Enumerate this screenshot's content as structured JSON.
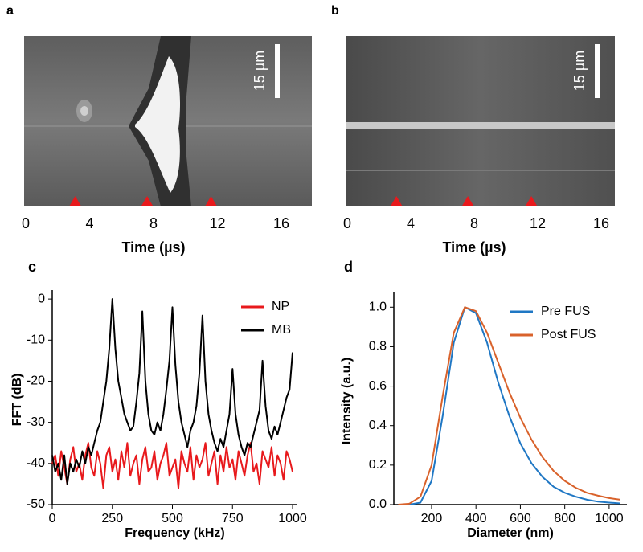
{
  "chart_data": [
    {
      "type": "streak",
      "label": "a",
      "xlabel": "Time (µs)",
      "xlim": [
        0,
        16
      ],
      "xticks": [
        0,
        4,
        8,
        12,
        16
      ],
      "scale_bar": "15 µm",
      "markers": [
        3.1,
        7.6,
        11.6
      ],
      "marker_color": "#e8191c"
    },
    {
      "type": "streak",
      "label": "b",
      "xlabel": "Time (µs)",
      "xlim": [
        0,
        16
      ],
      "xticks": [
        0,
        4,
        8,
        12,
        16
      ],
      "scale_bar": "15 µm",
      "markers": [
        3.1,
        7.6,
        11.6
      ],
      "marker_color": "#e8191c"
    },
    {
      "type": "line",
      "label": "c",
      "xlabel": "Frequency (kHz)",
      "ylabel": "FFT (dB)",
      "xlim": [
        0,
        1020
      ],
      "ylim": [
        -50,
        1
      ],
      "xticks": [
        0,
        250,
        500,
        750,
        1000
      ],
      "yticks": [
        0,
        -10,
        -20,
        -30,
        -40,
        -50
      ],
      "legend": "upper right",
      "x": [
        0,
        12.5,
        25,
        37.5,
        50,
        62.5,
        75,
        87.5,
        100,
        112.5,
        125,
        137.5,
        150,
        162.5,
        175,
        187.5,
        200,
        212.5,
        225,
        237.5,
        250,
        262.5,
        275,
        287.5,
        300,
        312.5,
        325,
        337.5,
        350,
        362.5,
        375,
        387.5,
        400,
        412.5,
        425,
        437.5,
        450,
        462.5,
        475,
        487.5,
        500,
        512.5,
        525,
        537.5,
        550,
        562.5,
        575,
        587.5,
        600,
        612.5,
        625,
        637.5,
        650,
        662.5,
        675,
        687.5,
        700,
        712.5,
        725,
        737.5,
        750,
        762.5,
        775,
        787.5,
        800,
        812.5,
        825,
        837.5,
        850,
        862.5,
        875,
        887.5,
        900,
        912.5,
        925,
        937.5,
        950,
        962.5,
        975,
        987.5,
        1000
      ],
      "series": [
        {
          "name": "NP",
          "color": "#e8191c",
          "values": [
            -40,
            -38,
            -43,
            -37,
            -41,
            -45,
            -39,
            -36,
            -42,
            -40,
            -44,
            -38,
            -35,
            -41,
            -43,
            -37,
            -40,
            -46,
            -38,
            -36,
            -42,
            -39,
            -44,
            -37,
            -41,
            -35,
            -43,
            -40,
            -38,
            -45,
            -39,
            -36,
            -42,
            -41,
            -37,
            -44,
            -40,
            -38,
            -35,
            -43,
            -41,
            -39,
            -46,
            -37,
            -40,
            -42,
            -36,
            -44,
            -38,
            -41,
            -39,
            -35,
            -43,
            -40,
            -37,
            -45,
            -38,
            -42,
            -36,
            -41,
            -39,
            -44,
            -37,
            -40,
            -43,
            -38,
            -35,
            -42,
            -40,
            -45,
            -37,
            -39,
            -41,
            -36,
            -43,
            -38,
            -40,
            -44,
            -37,
            -39,
            -42
          ]
        },
        {
          "name": "MB",
          "color": "#000000",
          "values": [
            -38,
            -42,
            -40,
            -44,
            -38,
            -45,
            -40,
            -42,
            -39,
            -41,
            -37,
            -40,
            -36,
            -38,
            -35,
            -32,
            -30,
            -25,
            -20,
            -12,
            0,
            -12,
            -20,
            -24,
            -28,
            -30,
            -32,
            -31,
            -25,
            -18,
            -3,
            -20,
            -28,
            -32,
            -33,
            -30,
            -32,
            -28,
            -22,
            -15,
            -2,
            -16,
            -25,
            -30,
            -33,
            -36,
            -32,
            -30,
            -26,
            -18,
            -4,
            -20,
            -28,
            -32,
            -35,
            -37,
            -34,
            -36,
            -32,
            -28,
            -17,
            -28,
            -33,
            -36,
            -38,
            -35,
            -36,
            -33,
            -30,
            -27,
            -15,
            -26,
            -32,
            -34,
            -31,
            -33,
            -30,
            -27,
            -24,
            -22,
            -13
          ]
        }
      ]
    },
    {
      "type": "line",
      "label": "d",
      "xlabel": "Diameter (nm)",
      "ylabel": "Intensity (a.u.)",
      "xlim": [
        30,
        1080
      ],
      "ylim": [
        0,
        1.05
      ],
      "xticks": [
        200,
        400,
        600,
        800,
        1000
      ],
      "yticks": [
        {
          "value": 0,
          "label": "0.0"
        },
        0.2,
        0.4,
        0.6,
        0.8,
        {
          "value": 1,
          "label": "1.0"
        }
      ],
      "legend": "upper right",
      "x": [
        50,
        100,
        150,
        200,
        250,
        300,
        350,
        400,
        450,
        500,
        550,
        600,
        650,
        700,
        750,
        800,
        850,
        900,
        950,
        1000,
        1050
      ],
      "series": [
        {
          "name": "Pre FUS",
          "color": "#1f77c4",
          "values": [
            0,
            0,
            0.01,
            0.12,
            0.45,
            0.82,
            1.0,
            0.97,
            0.82,
            0.62,
            0.45,
            0.31,
            0.21,
            0.14,
            0.09,
            0.06,
            0.04,
            0.025,
            0.015,
            0.01,
            0.006
          ]
        },
        {
          "name": "Post FUS",
          "color": "#d9622b",
          "values": [
            0,
            0.005,
            0.04,
            0.2,
            0.55,
            0.87,
            1.0,
            0.98,
            0.87,
            0.72,
            0.57,
            0.44,
            0.33,
            0.24,
            0.17,
            0.12,
            0.085,
            0.06,
            0.045,
            0.033,
            0.025
          ]
        }
      ]
    }
  ]
}
